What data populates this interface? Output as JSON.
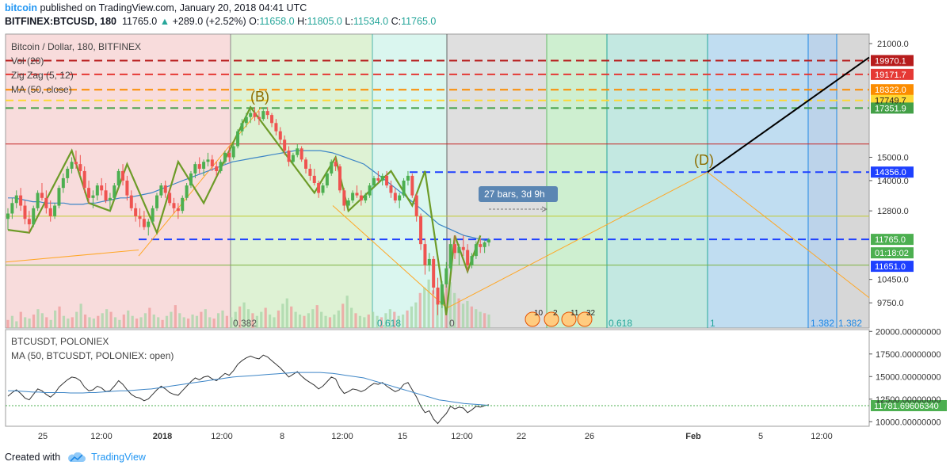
{
  "header": {
    "brand": "bitcoin",
    "published": "published on TradingView.com, January 20, 2018 04:41 UTC",
    "symbol": "BITFINEX:BTCUSD, 180",
    "last": "11765.0",
    "change": "+289.0 (+2.52%)",
    "o_label": "O:",
    "o": "11658.0",
    "h_label": "H:",
    "h": "11805.0",
    "l_label": "L:",
    "l": "11534.0",
    "c_label": "C:",
    "c": "11765.0"
  },
  "footer": {
    "created": "Created with",
    "brand": "TradingView"
  },
  "colors": {
    "up": "#26a69a",
    "down": "#ef5350",
    "candle_up": "#4caf50",
    "candle_down": "#ef5350",
    "zigzag": "#6d9b28",
    "ma": "#3d85c6",
    "fib": "#ffa726",
    "projection": "#000000"
  },
  "chart_data": [
    {
      "type": "candlestick",
      "title": "Bitcoin / Dollar, 180, BITFINEX",
      "legend": [
        "Vol (20)",
        "Zig Zag (5, 12)",
        "MA (50, close)"
      ],
      "y_scale": "log",
      "ylim": [
        9050,
        21600
      ],
      "y_ticks": [
        "21000.0",
        "15000.0",
        "14000.0",
        "12800.0",
        "10450.0",
        "9750.0"
      ],
      "x_ticks": [
        "25",
        "12:00",
        "2018",
        "12:00",
        "8",
        "12:00",
        "15",
        "12:00",
        "22",
        "26",
        "Feb",
        "5",
        "12:00"
      ],
      "price_labels": [
        {
          "value": "19970.1",
          "color": "#b71c1c"
        },
        {
          "value": "19171.7",
          "color": "#e53935"
        },
        {
          "value": "18322.0",
          "color": "#fb8c00"
        },
        {
          "value": "17749.7",
          "color": "#fdd835"
        },
        {
          "value": "17351.9",
          "color": "#43a047"
        },
        {
          "value": "14356.0",
          "color": "#1e40ff"
        },
        {
          "value": "11765.0",
          "color": "#4caf50"
        },
        {
          "value": "01:18:02",
          "color": "#4caf50"
        },
        {
          "value": "11651.0",
          "color": "#1e40ff"
        }
      ],
      "horizontal_levels": [
        {
          "value": 19970.1,
          "color": "#b71c1c",
          "style": "dashed"
        },
        {
          "value": 19171.7,
          "color": "#e53935",
          "style": "dashed"
        },
        {
          "value": 18322.0,
          "color": "#fb8c00",
          "style": "dashed"
        },
        {
          "value": 17749.7,
          "color": "#fdd835",
          "style": "dashed"
        },
        {
          "value": 17351.9,
          "color": "#43a047",
          "style": "dashed"
        },
        {
          "value": 14356.0,
          "color": "#1e40ff",
          "style": "dashed"
        },
        {
          "value": 11765.0,
          "color": "#1e40ff",
          "style": "dashed"
        },
        {
          "value": 15600.0,
          "color": "#c62828",
          "style": "solid"
        },
        {
          "value": 12600.0,
          "color": "#c0ca33",
          "style": "solid"
        },
        {
          "value": 10900.0,
          "color": "#7cb342",
          "style": "solid"
        }
      ],
      "annotations": [
        "(B)",
        "(D)"
      ],
      "measure_label": "27 bars, 3d 9h",
      "fib_time_labels": [
        "0.382",
        "0.618",
        "0",
        "0.618",
        "1",
        "1.382",
        "1.382"
      ],
      "event_badges": [
        "10",
        "2",
        "11",
        "32"
      ],
      "bars": [
        [
          12500,
          12900,
          12100,
          12700
        ],
        [
          12700,
          13300,
          12500,
          13100
        ],
        [
          13100,
          13600,
          12900,
          13400
        ],
        [
          13400,
          13700,
          12800,
          13000
        ],
        [
          13000,
          13200,
          12300,
          12500
        ],
        [
          12500,
          12800,
          12000,
          12300
        ],
        [
          12300,
          13000,
          12200,
          12900
        ],
        [
          12900,
          13600,
          12800,
          13500
        ],
        [
          13500,
          13900,
          13200,
          13300
        ],
        [
          13300,
          13600,
          12700,
          12900
        ],
        [
          12900,
          13200,
          12400,
          12600
        ],
        [
          12600,
          13100,
          12500,
          13000
        ],
        [
          13000,
          13800,
          12900,
          13700
        ],
        [
          13700,
          14300,
          13500,
          14100
        ],
        [
          14100,
          14600,
          13900,
          14500
        ],
        [
          14500,
          15000,
          14300,
          14800
        ],
        [
          14800,
          15300,
          14500,
          14700
        ],
        [
          14700,
          15100,
          14200,
          14400
        ],
        [
          14400,
          14600,
          13500,
          13700
        ],
        [
          13700,
          14000,
          13100,
          13300
        ],
        [
          13300,
          13600,
          12900,
          13400
        ],
        [
          13400,
          13900,
          13200,
          13800
        ],
        [
          13800,
          14100,
          13400,
          13600
        ],
        [
          13600,
          13900,
          13100,
          13200
        ],
        [
          13200,
          13500,
          12800,
          13300
        ],
        [
          13300,
          13900,
          13200,
          13800
        ],
        [
          13800,
          14500,
          13700,
          14400
        ],
        [
          14400,
          14700,
          13800,
          14000
        ],
        [
          14000,
          14200,
          13200,
          13400
        ],
        [
          13400,
          13600,
          12800,
          12900
        ],
        [
          12900,
          13100,
          12400,
          12600
        ],
        [
          12600,
          12900,
          12200,
          12500
        ],
        [
          12500,
          12800,
          12100,
          12200
        ],
        [
          12200,
          12500,
          11900,
          12400
        ],
        [
          12400,
          13000,
          12300,
          12900
        ],
        [
          12900,
          13500,
          12800,
          13400
        ],
        [
          13400,
          13900,
          13300,
          13800
        ],
        [
          13800,
          14000,
          13300,
          13500
        ],
        [
          13500,
          13700,
          13000,
          13100
        ],
        [
          13100,
          13300,
          12700,
          12900
        ],
        [
          12900,
          13100,
          12500,
          12800
        ],
        [
          12800,
          13400,
          12700,
          13300
        ],
        [
          13300,
          13900,
          13200,
          13800
        ],
        [
          13800,
          14400,
          13700,
          14300
        ],
        [
          14300,
          14800,
          14100,
          14700
        ],
        [
          14700,
          15000,
          14300,
          14500
        ],
        [
          14500,
          14900,
          14200,
          14800
        ],
        [
          14800,
          15200,
          14600,
          14900
        ],
        [
          14900,
          15100,
          14400,
          14600
        ],
        [
          14600,
          14800,
          14200,
          14400
        ],
        [
          14400,
          14900,
          14300,
          14800
        ],
        [
          14800,
          15300,
          14700,
          15200
        ],
        [
          15200,
          15500,
          14800,
          15000
        ],
        [
          15000,
          15600,
          14900,
          15500
        ],
        [
          15500,
          16300,
          15400,
          16200
        ],
        [
          16200,
          16800,
          16000,
          16600
        ],
        [
          16600,
          17100,
          16400,
          16900
        ],
        [
          16900,
          17300,
          16600,
          17100
        ],
        [
          17100,
          17400,
          16700,
          16900
        ],
        [
          16900,
          17200,
          16500,
          16800
        ],
        [
          16800,
          17300,
          16700,
          17200
        ],
        [
          17200,
          17400,
          16800,
          17000
        ],
        [
          17000,
          17100,
          16400,
          16600
        ],
        [
          16600,
          16800,
          16000,
          16200
        ],
        [
          16200,
          16400,
          15600,
          15800
        ],
        [
          15800,
          16000,
          15100,
          15300
        ],
        [
          15300,
          15500,
          14600,
          14800
        ],
        [
          14800,
          15200,
          14700,
          15100
        ],
        [
          15100,
          15600,
          15000,
          15400
        ],
        [
          15400,
          15500,
          14800,
          14900
        ],
        [
          14900,
          15000,
          14300,
          14500
        ],
        [
          14500,
          14700,
          14000,
          14200
        ],
        [
          14200,
          14500,
          13800,
          13900
        ],
        [
          13900,
          14000,
          13300,
          13500
        ],
        [
          13500,
          13900,
          13400,
          13800
        ],
        [
          13800,
          14400,
          13700,
          14300
        ],
        [
          14300,
          14900,
          14200,
          14800
        ],
        [
          14800,
          15000,
          14400,
          14600
        ],
        [
          14600,
          14700,
          13500,
          13600
        ],
        [
          13600,
          13700,
          12800,
          13000
        ],
        [
          13000,
          13300,
          12900,
          13200
        ],
        [
          13200,
          13600,
          13100,
          13500
        ],
        [
          13500,
          13800,
          13300,
          13400
        ],
        [
          13400,
          13600,
          13000,
          13200
        ],
        [
          13200,
          13500,
          13100,
          13400
        ],
        [
          13400,
          13900,
          13300,
          13800
        ],
        [
          13800,
          14200,
          13700,
          14100
        ],
        [
          14100,
          14400,
          13900,
          14000
        ],
        [
          14000,
          14300,
          13800,
          14200
        ],
        [
          14200,
          14400,
          13700,
          13800
        ],
        [
          13800,
          14000,
          13300,
          13500
        ],
        [
          13500,
          13700,
          13100,
          13200
        ],
        [
          13200,
          13500,
          12900,
          13400
        ],
        [
          13400,
          14100,
          13300,
          14000
        ],
        [
          14000,
          14400,
          13800,
          14200
        ],
        [
          14200,
          14300,
          13300,
          13400
        ],
        [
          13400,
          13500,
          12400,
          12600
        ],
        [
          12600,
          12700,
          11400,
          11600
        ],
        [
          11600,
          11800,
          10600,
          10900
        ],
        [
          10900,
          11300,
          10700,
          11100
        ],
        [
          11100,
          11200,
          10000,
          10200
        ],
        [
          10200,
          10500,
          9400,
          9700
        ],
        [
          9700,
          10400,
          9600,
          10300
        ],
        [
          10300,
          11000,
          10200,
          10800
        ],
        [
          10800,
          11800,
          10700,
          11600
        ],
        [
          11600,
          11900,
          11100,
          11300
        ],
        [
          11300,
          11600,
          10900,
          11500
        ],
        [
          11500,
          11900,
          11200,
          11400
        ],
        [
          11400,
          11600,
          10700,
          10900
        ],
        [
          10900,
          11300,
          10800,
          11200
        ],
        [
          11200,
          11700,
          11100,
          11600
        ],
        [
          11600,
          11800,
          11300,
          11500
        ],
        [
          11500,
          11700,
          11300,
          11658
        ],
        [
          11658,
          11805,
          11534,
          11765
        ]
      ],
      "ma50": [
        13300,
        13300,
        13250,
        13200,
        13150,
        13150,
        13100,
        13100,
        13100,
        13100,
        13050,
        13050,
        13050,
        13100,
        13100,
        13150,
        13200,
        13250,
        13300,
        13300,
        13350,
        13400,
        13450,
        13500,
        13600,
        13700,
        13800,
        13900,
        14000,
        14100,
        14200,
        14300,
        14400,
        14500,
        14600,
        14700,
        14800,
        14850,
        14900,
        14950,
        15000,
        15050,
        15100,
        15150,
        15200,
        15250,
        15300,
        15300,
        15300,
        15300,
        15300,
        15250,
        15200,
        15100,
        15000,
        14900,
        14800,
        14700,
        14500,
        14300,
        14100,
        13900,
        13700,
        13500,
        13300,
        13100,
        12900,
        12700,
        12500,
        12300,
        12200,
        12100,
        12000,
        11900,
        11850,
        11800,
        11750,
        11700
      ],
      "volume": [
        30,
        45,
        25,
        60,
        40,
        35,
        50,
        70,
        55,
        40,
        30,
        65,
        80,
        45,
        35,
        40,
        60,
        90,
        50,
        40,
        35,
        45,
        55,
        70,
        60,
        40,
        30,
        50,
        65,
        45,
        35,
        40,
        55,
        75,
        50,
        40,
        30,
        45,
        60,
        85,
        55,
        40,
        35,
        50,
        45,
        60,
        70,
        40,
        35,
        55,
        65,
        45,
        40,
        60,
        80,
        95,
        70,
        55,
        45,
        60,
        75,
        50,
        40,
        65,
        90,
        110,
        80,
        60,
        50,
        45,
        55,
        70,
        85,
        60,
        45,
        40,
        50,
        65,
        90,
        120,
        75,
        55,
        45,
        40,
        50,
        60,
        45,
        40,
        55,
        70,
        60,
        45,
        50,
        65,
        80,
        95,
        130,
        150,
        180,
        140,
        120,
        160,
        200,
        170,
        130,
        110,
        90,
        100,
        80,
        70,
        60,
        55,
        50
      ]
    },
    {
      "type": "line",
      "title": "BTCUSDT, POLONIEX",
      "legend": [
        "MA (50, BTCUSDT, POLONIEX: open)"
      ],
      "ylim": [
        9500,
        20200
      ],
      "y_ticks": [
        "20000.00000000",
        "17500.00000000",
        "15000.00000000",
        "12500.00000000",
        "10000.00000000"
      ],
      "last_label": "11781.69606340"
    }
  ]
}
